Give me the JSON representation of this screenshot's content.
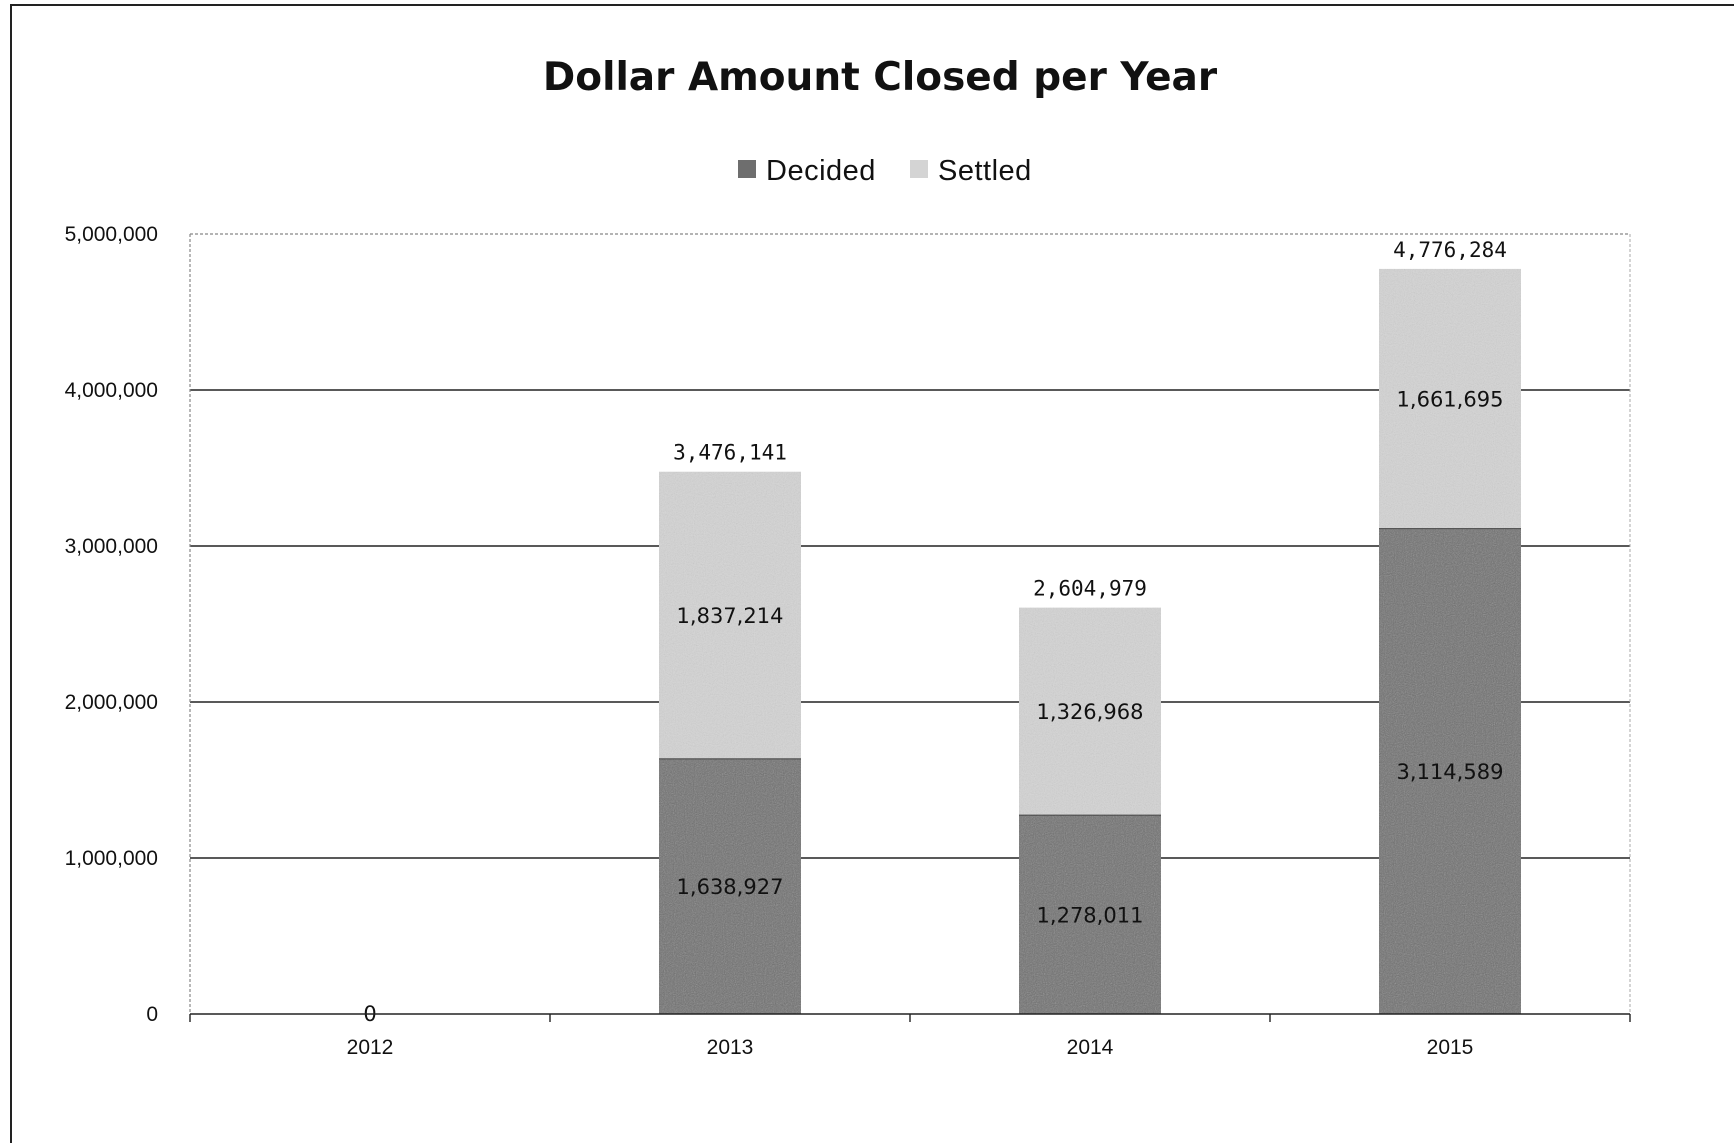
{
  "chart_data": {
    "type": "bar",
    "stacked": true,
    "title": "Dollar Amount Closed per Year",
    "xlabel": "",
    "ylabel": "",
    "categories": [
      "2012",
      "2013",
      "2014",
      "2015"
    ],
    "series": [
      {
        "name": "Decided",
        "values": [
          0,
          1638927,
          1278011,
          3114589
        ],
        "labels": [
          "0",
          "1,638,927",
          "1,278,011",
          "3,114,589"
        ],
        "color": "#6e6e6e"
      },
      {
        "name": "Settled",
        "values": [
          0,
          1837214,
          1326968,
          1661695
        ],
        "labels": [
          "",
          "1,837,214",
          "1,326,968",
          "1,661,695"
        ],
        "color": "#d4d4d4"
      }
    ],
    "totals": [
      0,
      3476141,
      2604979,
      4776284
    ],
    "total_labels": [
      "",
      "3,476,141",
      "2,604,979",
      "4,776,284"
    ],
    "ylim": [
      0,
      5000000
    ],
    "yticks": [
      0,
      1000000,
      2000000,
      3000000,
      4000000,
      5000000
    ],
    "ytick_labels": [
      "0",
      "1,000,000",
      "2,000,000",
      "3,000,000",
      "4,000,000",
      "5,000,000"
    ],
    "grid": true,
    "legend_position": "top"
  }
}
